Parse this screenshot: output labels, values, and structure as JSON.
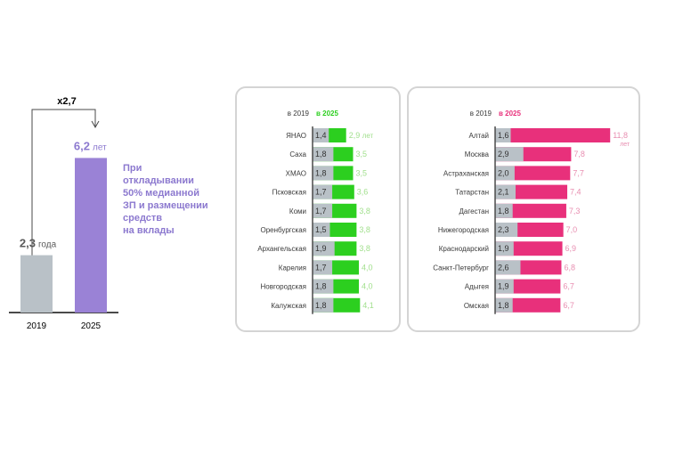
{
  "colors": {
    "gray_bar": "#b9c1c7",
    "purple_bar": "#9a82d6",
    "purple_text": "#8c79cf",
    "green": "#2ccf1f",
    "green_text": "#a3e08f",
    "pink": "#e8307b",
    "pink_text": "#e88fb1",
    "axis": "#4a4a4a",
    "label": "#3a3a3a"
  },
  "summary": {
    "multiplier_label": "x2,7",
    "note": [
      "При",
      "откладывании",
      "50% медианной",
      "ЗП и размещении",
      "средств",
      "на вклады"
    ]
  },
  "chart_data": [
    {
      "type": "bar",
      "categories": [
        "2019",
        "2025"
      ],
      "values": [
        2.3,
        6.2
      ],
      "value_labels": [
        "2,3",
        "6,2"
      ],
      "unit_labels": [
        "года",
        "лет"
      ],
      "ylim": [
        0,
        7.5
      ],
      "title": "",
      "xlabel": "",
      "ylabel": ""
    },
    {
      "type": "bar",
      "orientation": "horizontal",
      "header_2019": "в 2019",
      "header_2025": "в 2025",
      "categories": [
        "ЯНАО",
        "Саха",
        "ХМАО",
        "Псковская",
        "Коми",
        "Оренбургская",
        "Архангельская",
        "Карелия",
        "Новгородская",
        "Калужская"
      ],
      "series": [
        {
          "name": "в 2019",
          "values": [
            1.4,
            1.8,
            1.8,
            1.7,
            1.7,
            1.5,
            1.9,
            1.7,
            1.8,
            1.8
          ],
          "labels": [
            "1,4",
            "1,8",
            "1,8",
            "1,7",
            "1,7",
            "1,5",
            "1,9",
            "1,7",
            "1,8",
            "1,8"
          ]
        },
        {
          "name": "в 2025",
          "values": [
            2.9,
            3.5,
            3.5,
            3.6,
            3.8,
            3.8,
            3.8,
            4.0,
            4.0,
            4.1
          ],
          "labels": [
            "2,9",
            "3,5",
            "3,5",
            "3,6",
            "3,8",
            "3,8",
            "3,8",
            "4,0",
            "4,0",
            "4,1"
          ]
        }
      ],
      "first_unit": "лет",
      "xlim": [
        0,
        4.5
      ]
    },
    {
      "type": "bar",
      "orientation": "horizontal",
      "header_2019": "в 2019",
      "header_2025": "в 2025",
      "categories": [
        "Алтай",
        "Москва",
        "Астраханская",
        "Татарстан",
        "Дагестан",
        "Нижегородская",
        "Краснодарский",
        "Санкт-Петербург",
        "Адыгея",
        "Омская"
      ],
      "series": [
        {
          "name": "в 2019",
          "values": [
            1.6,
            2.9,
            2.0,
            2.1,
            1.8,
            2.3,
            1.9,
            2.6,
            1.9,
            1.8
          ],
          "labels": [
            "1,6",
            "2,9",
            "2,0",
            "2,1",
            "1,8",
            "2,3",
            "1,9",
            "2,6",
            "1,9",
            "1,8"
          ]
        },
        {
          "name": "в 2025",
          "values": [
            11.8,
            7.8,
            7.7,
            7.4,
            7.3,
            7.0,
            6.9,
            6.8,
            6.7,
            6.7
          ],
          "labels": [
            "11,8",
            "7,8",
            "7,7",
            "7,4",
            "7,3",
            "7,0",
            "6,9",
            "6,8",
            "6,7",
            "6,7"
          ]
        }
      ],
      "first_unit": "лет",
      "xlim": [
        0,
        11.8
      ]
    }
  ]
}
